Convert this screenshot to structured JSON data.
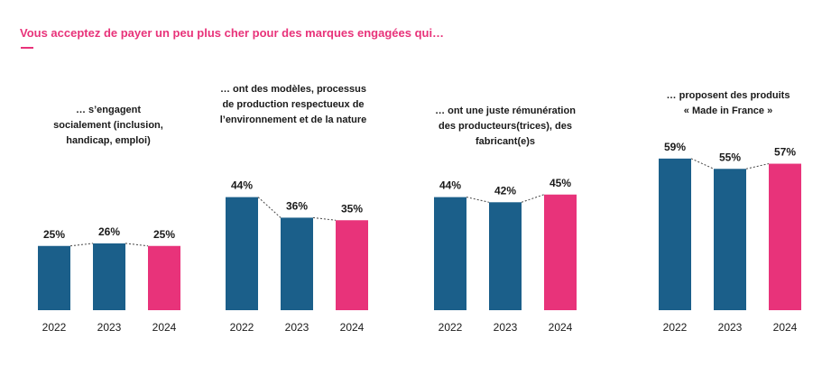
{
  "headline": "Vous acceptez de payer un peu plus cher pour des marques engagées qui…",
  "colors": {
    "accent": "#e8337a",
    "bar_past": "#1b5f8a",
    "bar_current": "#e8337a",
    "connector": "#444444"
  },
  "chart_data": [
    {
      "type": "bar",
      "title": "… s’engagent\nsocialement (inclusion,\nhandicap, emploi)",
      "categories": [
        "2022",
        "2023",
        "2024"
      ],
      "values": [
        25,
        26,
        25
      ],
      "value_labels": [
        "25%",
        "26%",
        "25%"
      ]
    },
    {
      "type": "bar",
      "title": "… ont des modèles, processus\nde production respectueux de\nl’environnement et de la nature",
      "categories": [
        "2022",
        "2023",
        "2024"
      ],
      "values": [
        44,
        36,
        35
      ],
      "value_labels": [
        "44%",
        "36%",
        "35%"
      ]
    },
    {
      "type": "bar",
      "title": "… ont une juste rémunération\ndes producteurs(trices), des\nfabricant(e)s",
      "categories": [
        "2022",
        "2023",
        "2024"
      ],
      "values": [
        44,
        42,
        45
      ],
      "value_labels": [
        "44%",
        "42%",
        "45%"
      ]
    },
    {
      "type": "bar",
      "title": "… proposent des produits\n« Made in France »",
      "categories": [
        "2022",
        "2023",
        "2024"
      ],
      "values": [
        59,
        55,
        57
      ],
      "value_labels": [
        "59%",
        "55%",
        "57%"
      ]
    }
  ]
}
